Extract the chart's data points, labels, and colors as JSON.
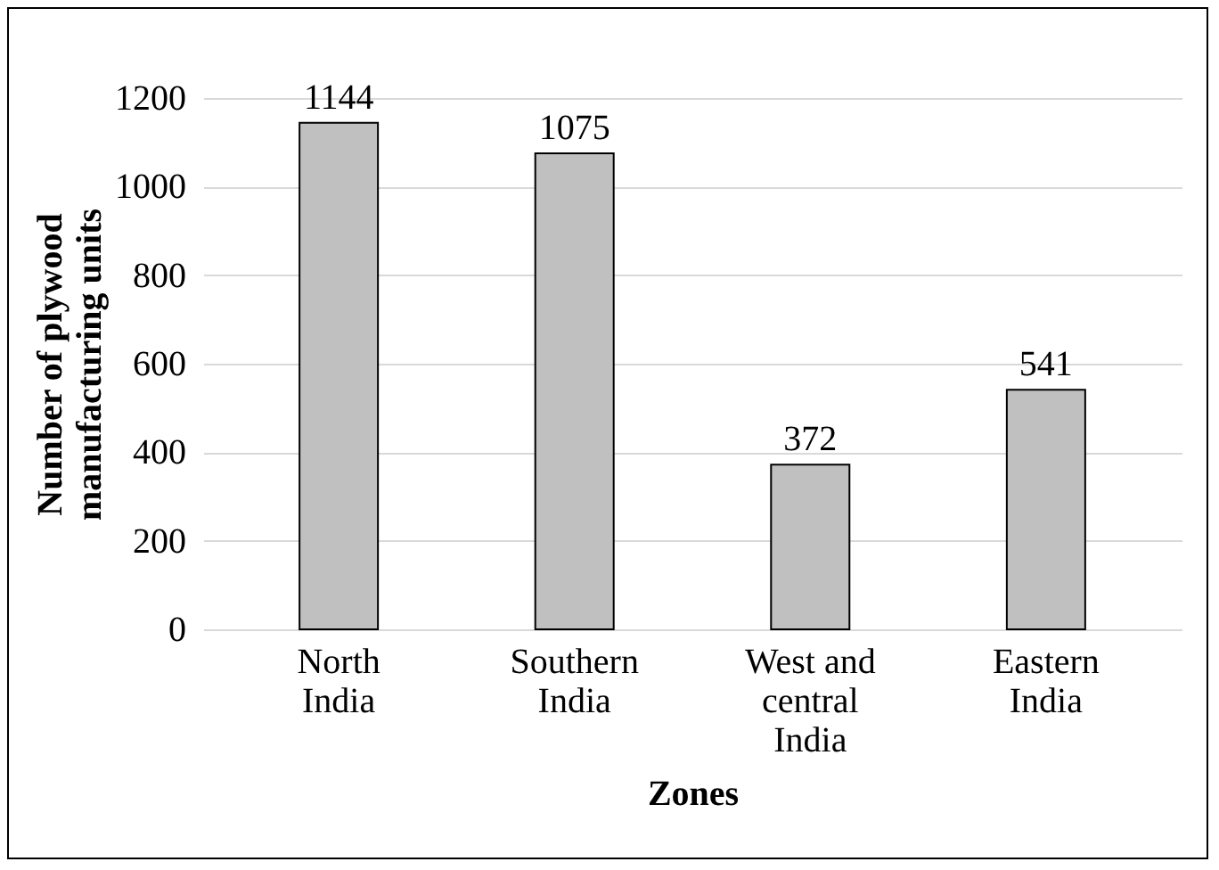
{
  "chart_data": {
    "type": "bar",
    "xlabel": "Zones",
    "ylabel": "Number of plywood manufacturing units",
    "categories": [
      "North India",
      "Southern India",
      "West and central India",
      "Eastern India"
    ],
    "values": [
      1144,
      1075,
      372,
      541
    ],
    "color": "#c0c0c0",
    "ylim": [
      0,
      1200
    ],
    "yticks": [
      0,
      200,
      400,
      600,
      800,
      1000,
      1200
    ],
    "grid": "y",
    "data_labels": true
  }
}
